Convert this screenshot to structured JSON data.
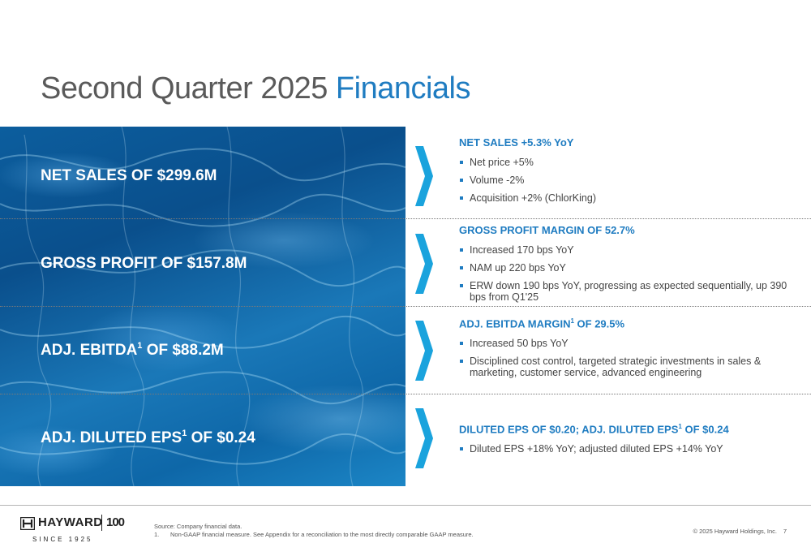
{
  "title": {
    "main": "Second Quarter 2025 ",
    "accent": "Financials"
  },
  "metrics": [
    {
      "label": "NET SALES OF $299.6M"
    },
    {
      "label": "GROSS PROFIT OF $157.8M"
    },
    {
      "pre": "ADJ. EBITDA",
      "sup": "1",
      "post": " OF $88.2M"
    },
    {
      "pre": "ADJ. DILUTED EPS",
      "sup": "1",
      "post": " OF $0.24"
    }
  ],
  "sections": [
    {
      "heading": "NET SALES +5.3% YoY",
      "bullets": [
        "Net price +5%",
        "Volume -2%",
        "Acquisition +2% (ChlorKing)"
      ]
    },
    {
      "heading": "GROSS PROFIT MARGIN OF 52.7%",
      "bullets": [
        "Increased 170 bps YoY",
        "NAM up 220 bps YoY",
        "ERW down 190 bps YoY, progressing as expected sequentially, up 390 bps from Q1'25"
      ]
    },
    {
      "heading_pre": "ADJ. EBITDA MARGIN",
      "heading_sup": "1",
      "heading_post": " OF 29.5%",
      "bullets": [
        "Increased 50 bps YoY",
        "Disciplined cost control, targeted strategic investments in sales & marketing, customer service, advanced engineering"
      ]
    },
    {
      "heading_pre": "DILUTED EPS OF $0.20; ADJ. DILUTED EPS",
      "heading_sup": "1",
      "heading_post": " OF $0.24",
      "bullets": [
        "Diluted EPS +18% YoY; adjusted diluted EPS +14% YoY"
      ]
    }
  ],
  "footer": {
    "logo_text": "HAYWARD",
    "logo_anniv": "100",
    "since": "SINCE 1925",
    "source_line": "Source: Company financial data.",
    "note_num": "1.",
    "note_text": "Non-GAAP financial measure. See Appendix for a reconciliation to the most directly comparable GAAP measure.",
    "copyright": "© 2025 Hayward Holdings, Inc.",
    "page": "7"
  },
  "colors": {
    "accent": "#1f7cc1",
    "chevron": "#1aa3dd",
    "pool": "#0c5e9e"
  }
}
